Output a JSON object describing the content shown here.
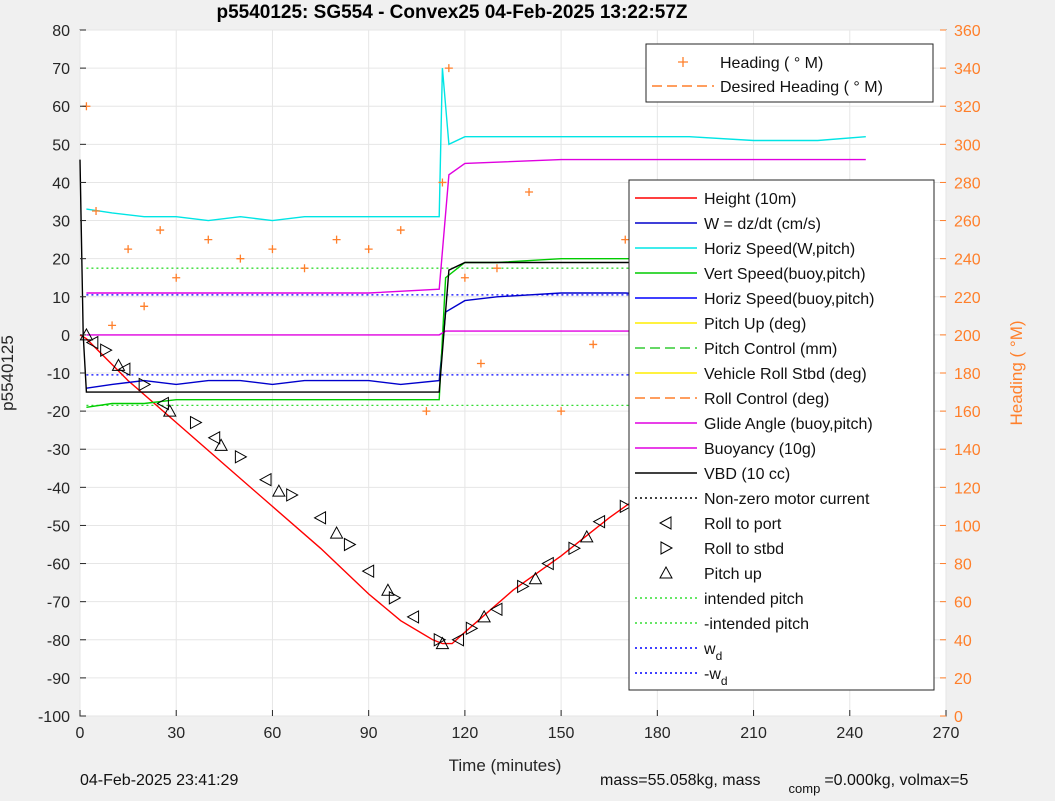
{
  "chart_data": {
    "type": "line",
    "title": "p5540125: SG554 - Convex25 04-Feb-2025 13:22:57Z",
    "xlabel": "Time (minutes)",
    "ylabel_left": "p5540125",
    "ylabel_right": "Heading (  °M)",
    "xlim": [
      0,
      270
    ],
    "ylim_left": [
      -100,
      80
    ],
    "ylim_right": [
      0,
      360
    ],
    "xticks": [
      "0",
      "30",
      "60",
      "90",
      "120",
      "150",
      "180",
      "210",
      "240",
      "270"
    ],
    "yticks_left": [
      "80",
      "70",
      "60",
      "50",
      "40",
      "30",
      "20",
      "10",
      "0",
      "-10",
      "-20",
      "-30",
      "-40",
      "-50",
      "-60",
      "-70",
      "-80",
      "-90",
      "-100"
    ],
    "yticks_right": [
      "360",
      "340",
      "320",
      "300",
      "280",
      "260",
      "240",
      "220",
      "200",
      "180",
      "160",
      "140",
      "120",
      "100",
      "80",
      "60",
      "40",
      "20",
      "0"
    ],
    "grid": true,
    "colors": {
      "heading": "#ff7f2a",
      "right_axis": "#ff7f2a",
      "height": "#ff0000",
      "w": "#0000cc",
      "horiz_speed": "#00e5e5",
      "vert_speed": "#00cc00",
      "pitch": "#ffee00",
      "vbd": "#000000",
      "glide": "#e000e0",
      "intended": "#33dd33",
      "wd": "#0000ff"
    },
    "legend_top": {
      "placement": "top-right",
      "entries": [
        {
          "label": "Heading (  ° M)",
          "marker": "+",
          "color": "#ff7f2a"
        },
        {
          "label": "Desired Heading (    ° M)",
          "style": "dash",
          "color": "#ff7f2a"
        }
      ]
    },
    "legend_main": {
      "placement": "right",
      "entries": [
        {
          "label": "Height (10m)",
          "style": "solid",
          "color": "#ff0000"
        },
        {
          "label": "W = dz/dt (cm/s)",
          "style": "solid",
          "color": "#0000cc"
        },
        {
          "label": "Horiz Speed(W,pitch)",
          "style": "solid",
          "color": "#00e5e5"
        },
        {
          "label": "Vert Speed(buoy,pitch)",
          "style": "solid",
          "color": "#00cc00"
        },
        {
          "label": "Horiz Speed(buoy,pitch)",
          "style": "solid",
          "color": "#0000ff"
        },
        {
          "label": "Pitch Up (deg)",
          "style": "solid",
          "color": "#ffee00"
        },
        {
          "label": "Pitch Control (mm)",
          "style": "dash",
          "color": "#33cc33"
        },
        {
          "label": "Vehicle Roll Stbd (deg)",
          "style": "solid",
          "color": "#ffee00"
        },
        {
          "label": "Roll Control (deg)",
          "style": "dash",
          "color": "#ff7f2a"
        },
        {
          "label": "Glide Angle (buoy,pitch)",
          "style": "solid",
          "color": "#e000e0"
        },
        {
          "label": "Buoyancy (10g)",
          "style": "solid",
          "color": "#e000e0"
        },
        {
          "label": "VBD (10 cc)",
          "style": "solid",
          "color": "#000000"
        },
        {
          "label": "Non-zero motor current",
          "style": "dot",
          "color": "#000000"
        },
        {
          "label": "Roll to port",
          "marker": "tri-left",
          "color": "#000000"
        },
        {
          "label": "Roll to stbd",
          "marker": "tri-right",
          "color": "#000000"
        },
        {
          "label": "Pitch up",
          "marker": "tri-up",
          "color": "#000000"
        },
        {
          "label": "intended pitch",
          "style": "dot",
          "color": "#33dd33"
        },
        {
          "label": "-intended pitch",
          "style": "dot",
          "color": "#33dd33"
        },
        {
          "label": "w",
          "sub": "d",
          "style": "dot",
          "color": "#0000ff"
        },
        {
          "label": "-w",
          "sub": "d",
          "style": "dot",
          "color": "#0000ff"
        }
      ]
    },
    "series": [
      {
        "name": "Height (10m)",
        "x": [
          0,
          2,
          15,
          30,
          45,
          60,
          75,
          90,
          100,
          110,
          113,
          116,
          120,
          135,
          150,
          165,
          180,
          195,
          210,
          225,
          240,
          246
        ],
        "y": [
          0,
          -1,
          -12,
          -23,
          -34,
          -45,
          -56,
          -68,
          -75,
          -80,
          -81,
          -81,
          -78,
          -67,
          -58,
          -48,
          -39,
          -29,
          -20,
          -11,
          -3,
          0
        ]
      },
      {
        "name": "W = dz/dt (cm/s)",
        "x": [
          2,
          10,
          20,
          30,
          40,
          50,
          60,
          70,
          80,
          90,
          100,
          112,
          114,
          120,
          130,
          150,
          170,
          190,
          210,
          230,
          245
        ],
        "y": [
          -14,
          -13,
          -12,
          -13,
          -12,
          -12,
          -13,
          -12,
          -12,
          -12,
          -13,
          -12,
          6,
          9,
          10,
          11,
          11,
          10,
          10,
          10,
          10
        ]
      },
      {
        "name": "Horiz Speed(W,pitch)",
        "x": [
          2,
          10,
          20,
          30,
          40,
          50,
          60,
          70,
          80,
          90,
          100,
          112,
          113,
          115,
          120,
          130,
          150,
          170,
          190,
          210,
          230,
          245
        ],
        "y": [
          33,
          32,
          31,
          31,
          30,
          31,
          30,
          31,
          31,
          31,
          31,
          31,
          70,
          50,
          52,
          52,
          52,
          52,
          52,
          51,
          51,
          52
        ]
      },
      {
        "name": "Vert Speed(buoy,pitch)",
        "x": [
          2,
          10,
          20,
          30,
          40,
          50,
          60,
          70,
          80,
          90,
          100,
          112,
          114,
          120,
          130,
          150,
          170,
          190,
          210,
          230,
          245
        ],
        "y": [
          -19,
          -18,
          -18,
          -17,
          -17,
          -17,
          -17,
          -17,
          -17,
          -17,
          -17,
          -17,
          15,
          19,
          19,
          20,
          20,
          20,
          20,
          20,
          20
        ]
      },
      {
        "name": "Glide Angle (buoy,pitch)",
        "x": [
          2,
          30,
          60,
          90,
          112,
          115,
          120,
          150,
          180,
          210,
          240,
          245
        ],
        "y": [
          11,
          11,
          11,
          11,
          12,
          42,
          45,
          46,
          46,
          46,
          46,
          46
        ]
      },
      {
        "name": "Buoyancy (10g)",
        "x": [
          2,
          30,
          60,
          90,
          112,
          114,
          120,
          150,
          180,
          210,
          240,
          245
        ],
        "y": [
          0,
          0,
          0,
          0,
          0,
          1,
          1,
          1,
          1,
          1,
          1,
          1
        ]
      },
      {
        "name": "VBD (10 cc)",
        "x": [
          0,
          1,
          2,
          30,
          60,
          90,
          112,
          115,
          120,
          150,
          180,
          210,
          240,
          245
        ],
        "y": [
          46,
          0,
          -15,
          -15,
          -15,
          -15,
          -15,
          17,
          19,
          19,
          19,
          19,
          19,
          19
        ]
      },
      {
        "name": "Heading (  ° M)",
        "x": [
          2,
          5,
          10,
          15,
          20,
          25,
          30,
          40,
          50,
          60,
          70,
          80,
          90,
          100,
          108,
          113,
          115,
          120,
          125,
          130,
          140,
          150,
          160,
          170,
          180,
          190,
          200,
          210,
          220,
          230,
          240,
          245
        ],
        "y": [
          320,
          265,
          205,
          245,
          215,
          255,
          230,
          250,
          240,
          245,
          235,
          250,
          245,
          255,
          160,
          280,
          340,
          230,
          185,
          235,
          275,
          160,
          195,
          250,
          175,
          255,
          200,
          230,
          170,
          225,
          240,
          230
        ],
        "axis": "right"
      }
    ],
    "reference_lines": [
      {
        "name": "intended pitch",
        "y": 17.5
      },
      {
        "name": "-intended pitch",
        "y": -18.5
      },
      {
        "name": "w d",
        "y": 10.5
      },
      {
        "name": "-w d",
        "y": -10.5
      }
    ],
    "markers": {
      "tri-left": {
        "x": [
          4,
          14,
          26,
          42,
          58,
          75,
          90,
          104,
          118,
          130,
          146,
          162,
          178,
          196,
          214,
          232
        ],
        "y": [
          -2,
          -9,
          -18,
          -27,
          -38,
          -48,
          -62,
          -74,
          -80,
          -72,
          -60,
          -49,
          -39,
          -28,
          -18,
          -8
        ]
      },
      "tri-right": {
        "x": [
          8,
          20,
          36,
          50,
          66,
          84,
          98,
          112,
          122,
          138,
          154,
          170,
          186,
          204,
          222,
          240
        ],
        "y": [
          -4,
          -13,
          -23,
          -32,
          -42,
          -55,
          -69,
          -80,
          -77,
          -66,
          -56,
          -45,
          -34,
          -23,
          -13,
          -3
        ]
      },
      "tri-up": {
        "x": [
          2,
          12,
          28,
          44,
          62,
          80,
          96,
          113,
          126,
          142,
          158,
          174,
          192,
          210,
          228,
          245
        ],
        "y": [
          0,
          -8,
          -20,
          -29,
          -41,
          -52,
          -67,
          -81,
          -74,
          -64,
          -53,
          -43,
          -31,
          -20,
          -10,
          0
        ]
      }
    }
  },
  "footer": {
    "timestamp": "04-Feb-2025 23:41:29",
    "mass_text": "mass=55.058kg, mass",
    "mass_sub": "comp",
    "mass_text2": "=0.000kg, volmax=5"
  }
}
